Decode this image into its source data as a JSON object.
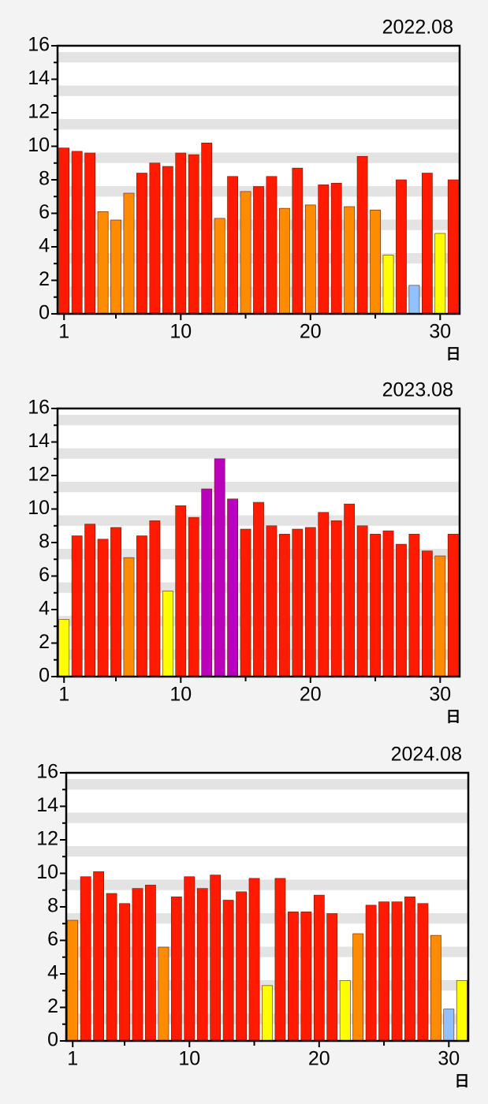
{
  "chart_data": [
    {
      "type": "bar",
      "title": "2022.08",
      "xlabel": "日",
      "x": [
        1,
        2,
        3,
        4,
        5,
        6,
        7,
        8,
        9,
        10,
        11,
        12,
        13,
        14,
        15,
        16,
        17,
        18,
        19,
        20,
        21,
        22,
        23,
        24,
        25,
        26,
        27,
        28,
        29,
        30,
        31
      ],
      "values": [
        9.9,
        9.7,
        9.6,
        6.1,
        5.6,
        7.2,
        8.4,
        9.0,
        8.8,
        9.6,
        9.5,
        10.2,
        5.7,
        8.2,
        7.3,
        7.6,
        8.2,
        6.3,
        8.7,
        6.5,
        7.7,
        7.8,
        6.4,
        9.4,
        6.2,
        3.5,
        8.0,
        1.7,
        8.4,
        4.8,
        8.0
      ],
      "colors": [
        "#ff1a00",
        "#ff1a00",
        "#ff1a00",
        "#ff8c00",
        "#ff8c00",
        "#ff8c00",
        "#ff1a00",
        "#ff1a00",
        "#ff1a00",
        "#ff1a00",
        "#ff1a00",
        "#ff1a00",
        "#ff8c00",
        "#ff1a00",
        "#ff8c00",
        "#ff1a00",
        "#ff1a00",
        "#ff8c00",
        "#ff1a00",
        "#ff8c00",
        "#ff1a00",
        "#ff1a00",
        "#ff8c00",
        "#ff1a00",
        "#ff8c00",
        "#ffff00",
        "#ff1a00",
        "#8fc2ff",
        "#ff1a00",
        "#ffff00",
        "#ff1a00"
      ],
      "xlim": [
        0.5,
        31.5
      ],
      "xticks": [
        1,
        10,
        20,
        30
      ],
      "xminorticks": [
        5,
        15,
        25
      ],
      "ylim": [
        0,
        16
      ],
      "yticks": [
        0,
        2,
        4,
        6,
        8,
        10,
        12,
        14,
        16
      ],
      "yminorticks": [
        1,
        3,
        5,
        7,
        9,
        11,
        13,
        15
      ]
    },
    {
      "type": "bar",
      "title": "2023.08",
      "xlabel": "日",
      "x": [
        1,
        2,
        3,
        4,
        5,
        6,
        7,
        8,
        9,
        10,
        11,
        12,
        13,
        14,
        15,
        16,
        17,
        18,
        19,
        20,
        21,
        22,
        23,
        24,
        25,
        26,
        27,
        28,
        29,
        30,
        31
      ],
      "values": [
        3.4,
        8.4,
        9.1,
        8.2,
        8.9,
        7.1,
        8.4,
        9.3,
        5.1,
        10.2,
        9.5,
        11.2,
        13.0,
        10.6,
        8.8,
        10.4,
        9.0,
        8.5,
        8.8,
        8.9,
        9.8,
        9.3,
        10.3,
        9.0,
        8.5,
        8.7,
        7.9,
        8.5,
        7.5,
        7.2,
        8.5
      ],
      "colors": [
        "#ffff00",
        "#ff1a00",
        "#ff1a00",
        "#ff1a00",
        "#ff1a00",
        "#ff8c00",
        "#ff1a00",
        "#ff1a00",
        "#ffff00",
        "#ff1a00",
        "#ff1a00",
        "#bb00bb",
        "#bb00bb",
        "#bb00bb",
        "#ff1a00",
        "#ff1a00",
        "#ff1a00",
        "#ff1a00",
        "#ff1a00",
        "#ff1a00",
        "#ff1a00",
        "#ff1a00",
        "#ff1a00",
        "#ff1a00",
        "#ff1a00",
        "#ff1a00",
        "#ff1a00",
        "#ff1a00",
        "#ff1a00",
        "#ff8c00",
        "#ff1a00"
      ],
      "xlim": [
        0.5,
        31.5
      ],
      "xticks": [
        1,
        10,
        20,
        30
      ],
      "xminorticks": [
        5,
        15,
        25
      ],
      "ylim": [
        0,
        16
      ],
      "yticks": [
        0,
        2,
        4,
        6,
        8,
        10,
        12,
        14,
        16
      ],
      "yminorticks": [
        1,
        3,
        5,
        7,
        9,
        11,
        13,
        15
      ]
    },
    {
      "type": "bar",
      "title": "2024.08",
      "xlabel": "日",
      "x": [
        1,
        2,
        3,
        4,
        5,
        6,
        7,
        8,
        9,
        10,
        11,
        12,
        13,
        14,
        15,
        16,
        17,
        18,
        19,
        20,
        21,
        22,
        23,
        24,
        25,
        26,
        27,
        28,
        29,
        30,
        31
      ],
      "values": [
        7.2,
        9.8,
        10.1,
        8.8,
        8.2,
        9.1,
        9.3,
        5.6,
        8.6,
        9.8,
        9.1,
        9.9,
        8.4,
        8.9,
        9.7,
        3.3,
        9.7,
        7.7,
        7.7,
        8.7,
        7.6,
        3.6,
        6.4,
        8.1,
        8.3,
        8.3,
        8.6,
        8.2,
        6.3,
        1.9,
        3.6
      ],
      "colors": [
        "#ff8c00",
        "#ff1a00",
        "#ff1a00",
        "#ff1a00",
        "#ff1a00",
        "#ff1a00",
        "#ff1a00",
        "#ff8c00",
        "#ff1a00",
        "#ff1a00",
        "#ff1a00",
        "#ff1a00",
        "#ff1a00",
        "#ff1a00",
        "#ff1a00",
        "#ffff00",
        "#ff1a00",
        "#ff1a00",
        "#ff1a00",
        "#ff1a00",
        "#ff1a00",
        "#ffff00",
        "#ff8c00",
        "#ff1a00",
        "#ff1a00",
        "#ff1a00",
        "#ff1a00",
        "#ff1a00",
        "#ff8c00",
        "#8fc2ff",
        "#ffff00"
      ],
      "xlim": [
        0.5,
        31.5
      ],
      "xticks": [
        1,
        10,
        20,
        30
      ],
      "xminorticks": [
        5,
        15,
        25
      ],
      "ylim": [
        0,
        16
      ],
      "yticks": [
        0,
        2,
        4,
        6,
        8,
        10,
        12,
        14,
        16
      ],
      "yminorticks": [
        1,
        3,
        5,
        7,
        9,
        11,
        13,
        15
      ]
    }
  ]
}
